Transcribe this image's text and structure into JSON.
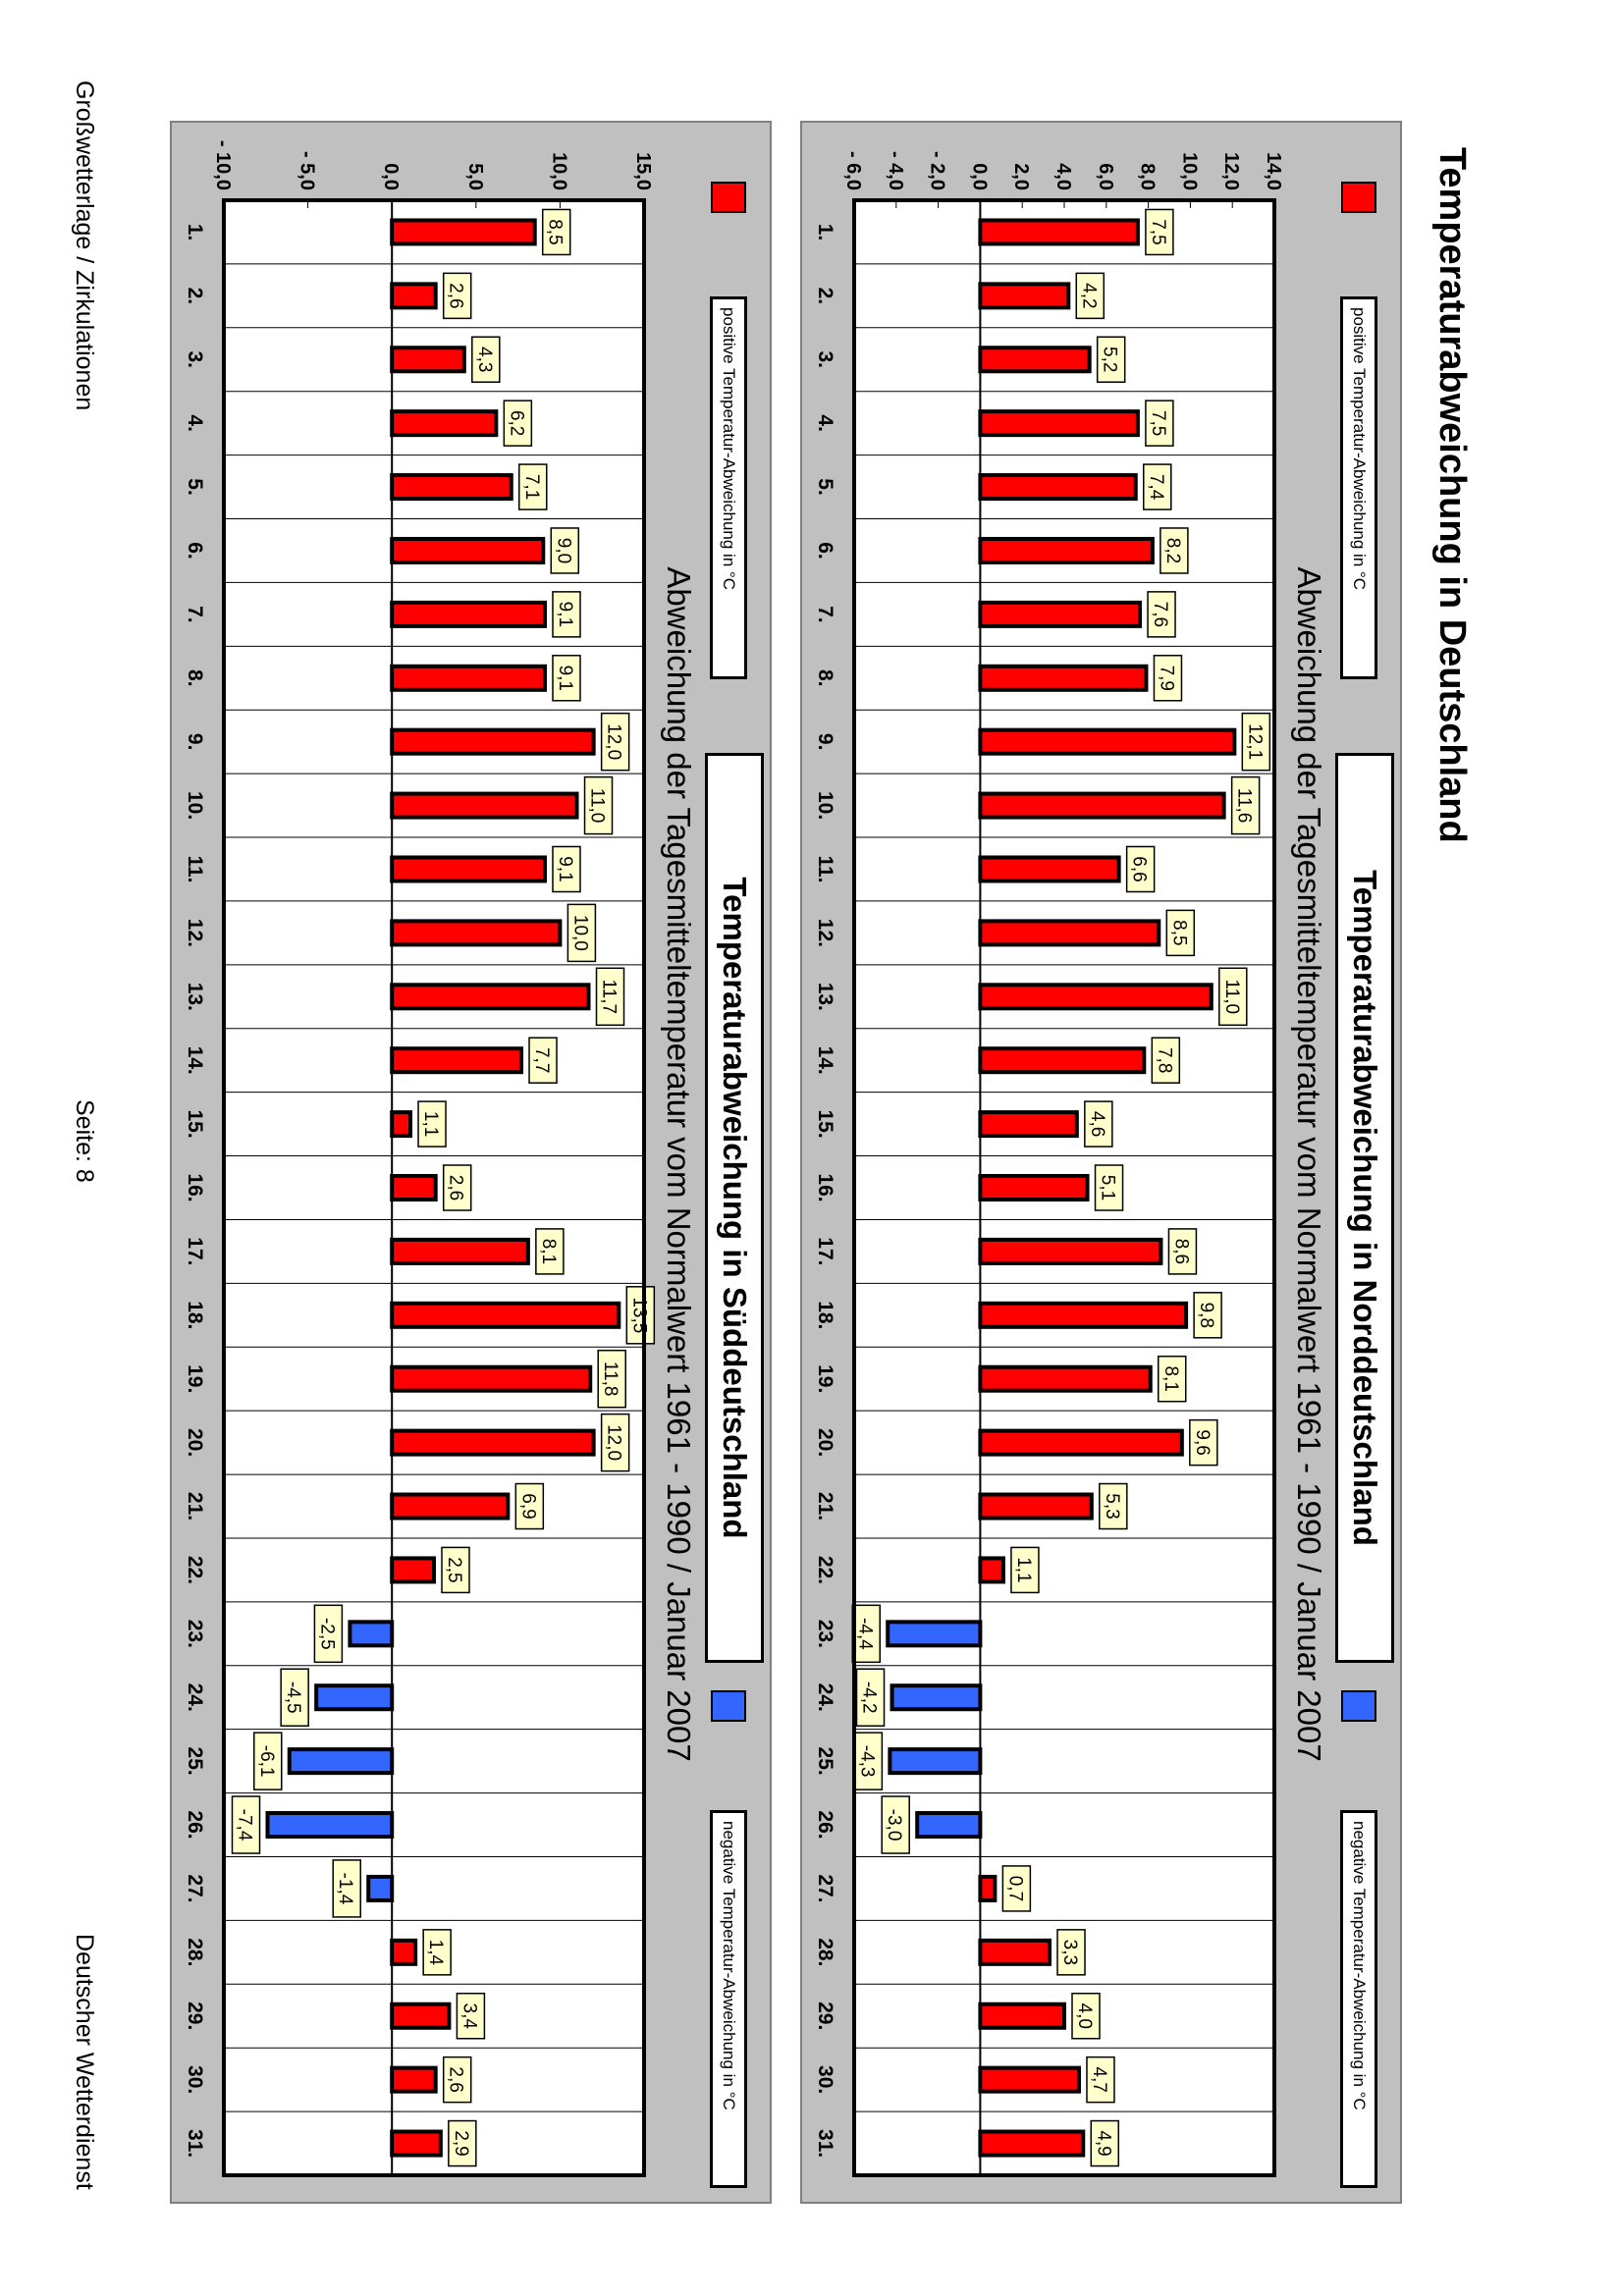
{
  "page": {
    "title": "Temperaturabweichung in Deutschland",
    "footer_left": "Großwetterlage / Zirkulationen",
    "footer_center": "Seite: 8",
    "footer_right": "Deutscher Wetterdienst"
  },
  "colors": {
    "positive": "#ff0000",
    "negative": "#3366ff",
    "panel": "#c0c0c0",
    "label_bg": "#ffffcc"
  },
  "chart_data": [
    {
      "type": "bar",
      "title": "Temperaturabweichung in Norddeutschland",
      "subtitle": "Abweichung der Tagesmitteltemperatur vom Normalwert 1961 - 1990  /  Januar 2007",
      "legend": [
        "positive Temperatur-Abweichung in °C",
        "negative Temperatur-Abweichung in °C"
      ],
      "categories": [
        "1.",
        "2.",
        "3.",
        "4.",
        "5.",
        "6.",
        "7.",
        "8.",
        "9.",
        "10.",
        "11.",
        "12.",
        "13.",
        "14.",
        "15.",
        "16.",
        "17.",
        "18.",
        "19.",
        "20.",
        "21.",
        "22.",
        "23.",
        "24.",
        "25.",
        "26.",
        "27.",
        "28.",
        "29.",
        "30.",
        "31."
      ],
      "values": [
        7.5,
        4.2,
        5.2,
        7.5,
        7.4,
        8.2,
        7.6,
        7.9,
        12.1,
        11.6,
        6.6,
        8.5,
        11.0,
        7.8,
        4.6,
        5.1,
        8.6,
        9.8,
        8.1,
        9.6,
        5.3,
        1.1,
        -4.4,
        -4.2,
        -4.3,
        -3.0,
        0.7,
        3.3,
        4.0,
        4.7,
        4.9
      ],
      "labels": [
        "7,5",
        "4,2",
        "5,2",
        "7,5",
        "7,4",
        "8,2",
        "7,6",
        "7,9",
        "12,1",
        "11,6",
        "6,6",
        "8,5",
        "11,0",
        "7,8",
        "4,6",
        "5,1",
        "8,6",
        "9,8",
        "8,1",
        "9,6",
        "5,3",
        "1,1",
        "-4,4",
        "-4,2",
        "-4,3",
        "-3,0",
        "0,7",
        "3,3",
        "4,0",
        "4,7",
        "4,9"
      ],
      "ylim": [
        -6,
        14
      ],
      "yticks": [
        -6,
        -4,
        -2,
        0,
        2,
        4,
        6,
        8,
        10,
        12,
        14
      ],
      "ytick_labels": [
        "- 6,0",
        "- 4,0",
        "- 2,0",
        "0,0",
        "2,0",
        "4,0",
        "6,0",
        "8,0",
        "10,0",
        "12,0",
        "14,0"
      ]
    },
    {
      "type": "bar",
      "title": "Temperaturabweichung in Süddeutschland",
      "subtitle": "Abweichung der Tagesmitteltemperatur vom Normalwert 1961 - 1990  /  Januar 2007",
      "legend": [
        "positive Temperatur-Abweichung in °C",
        "negative Temperatur-Abweichung in °C"
      ],
      "categories": [
        "1.",
        "2.",
        "3.",
        "4.",
        "5.",
        "6.",
        "7.",
        "8.",
        "9.",
        "10.",
        "11.",
        "12.",
        "13.",
        "14.",
        "15.",
        "16.",
        "17.",
        "18.",
        "19.",
        "20.",
        "21.",
        "22.",
        "23.",
        "24.",
        "25.",
        "26.",
        "27.",
        "28.",
        "29.",
        "30.",
        "31."
      ],
      "values": [
        8.5,
        2.6,
        4.3,
        6.2,
        7.1,
        9.0,
        9.1,
        9.1,
        12.0,
        11.0,
        9.1,
        10.0,
        11.7,
        7.7,
        1.1,
        2.6,
        8.1,
        13.5,
        11.8,
        12.0,
        6.9,
        2.5,
        -2.5,
        -4.5,
        -6.1,
        -7.4,
        -1.4,
        1.4,
        3.4,
        2.6,
        2.9
      ],
      "labels": [
        "8,5",
        "2,6",
        "4,3",
        "6,2",
        "7,1",
        "9,0",
        "9,1",
        "9,1",
        "12,0",
        "11,0",
        "9,1",
        "10,0",
        "11,7",
        "7,7",
        "1,1",
        "2,6",
        "8,1",
        "13,5",
        "11,8",
        "12,0",
        "6,9",
        "2,5",
        "-2,5",
        "-4,5",
        "-6,1",
        "-7,4",
        "-1,4",
        "1,4",
        "3,4",
        "2,6",
        "2,9"
      ],
      "ylim": [
        -10,
        15
      ],
      "yticks": [
        -10,
        -5,
        0,
        5,
        10,
        15
      ],
      "ytick_labels": [
        "- 10,0",
        "- 5,0",
        "0,0",
        "5,0",
        "10,0",
        "15,0"
      ]
    }
  ]
}
